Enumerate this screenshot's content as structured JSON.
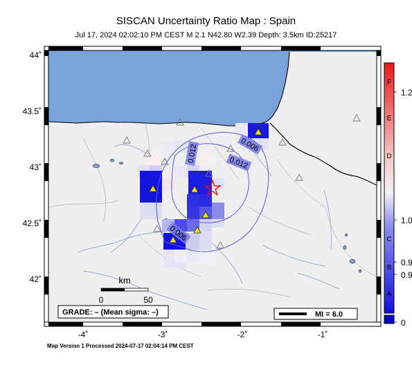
{
  "title": "SISCAN Uncertainty Ratio Map : Spain",
  "subtitle": "Jul 17, 2024 02:02:10 PM CEST   M 2.1   N42.80 W2.39   Depth: 3.5km   ID:25217",
  "footer": "Map Version 1 Processed 2024-07-17 02:04:14 PM CEST",
  "axes": {
    "lat_labels": [
      "44˚",
      "43.5˚",
      "43˚",
      "42.5˚",
      "42˚"
    ],
    "lon_labels": [
      "-4˚",
      "-3˚",
      "-2˚",
      "-1˚"
    ]
  },
  "scale_bar": {
    "unit": "km",
    "tick0": "0",
    "tick1": "50"
  },
  "grade_box": {
    "text": "GRADE: – (Mean sigma: –)"
  },
  "mi_legend": {
    "text": "MI = 6.0"
  },
  "contours": {
    "labels": [
      "0.012",
      "0.006",
      "0.012",
      "0.006"
    ]
  },
  "colorbar": {
    "letters": [
      "F",
      "E",
      "D",
      "C",
      "B",
      "A"
    ],
    "values": [
      "1.2",
      "1.0",
      "0.9",
      "0.9",
      "0"
    ]
  },
  "colors": {
    "sea": "#7aa3dc",
    "land": "#efefef",
    "cell_blue": "#1111dd",
    "star": "#e01010",
    "station_fill": "#f0e60a"
  }
}
